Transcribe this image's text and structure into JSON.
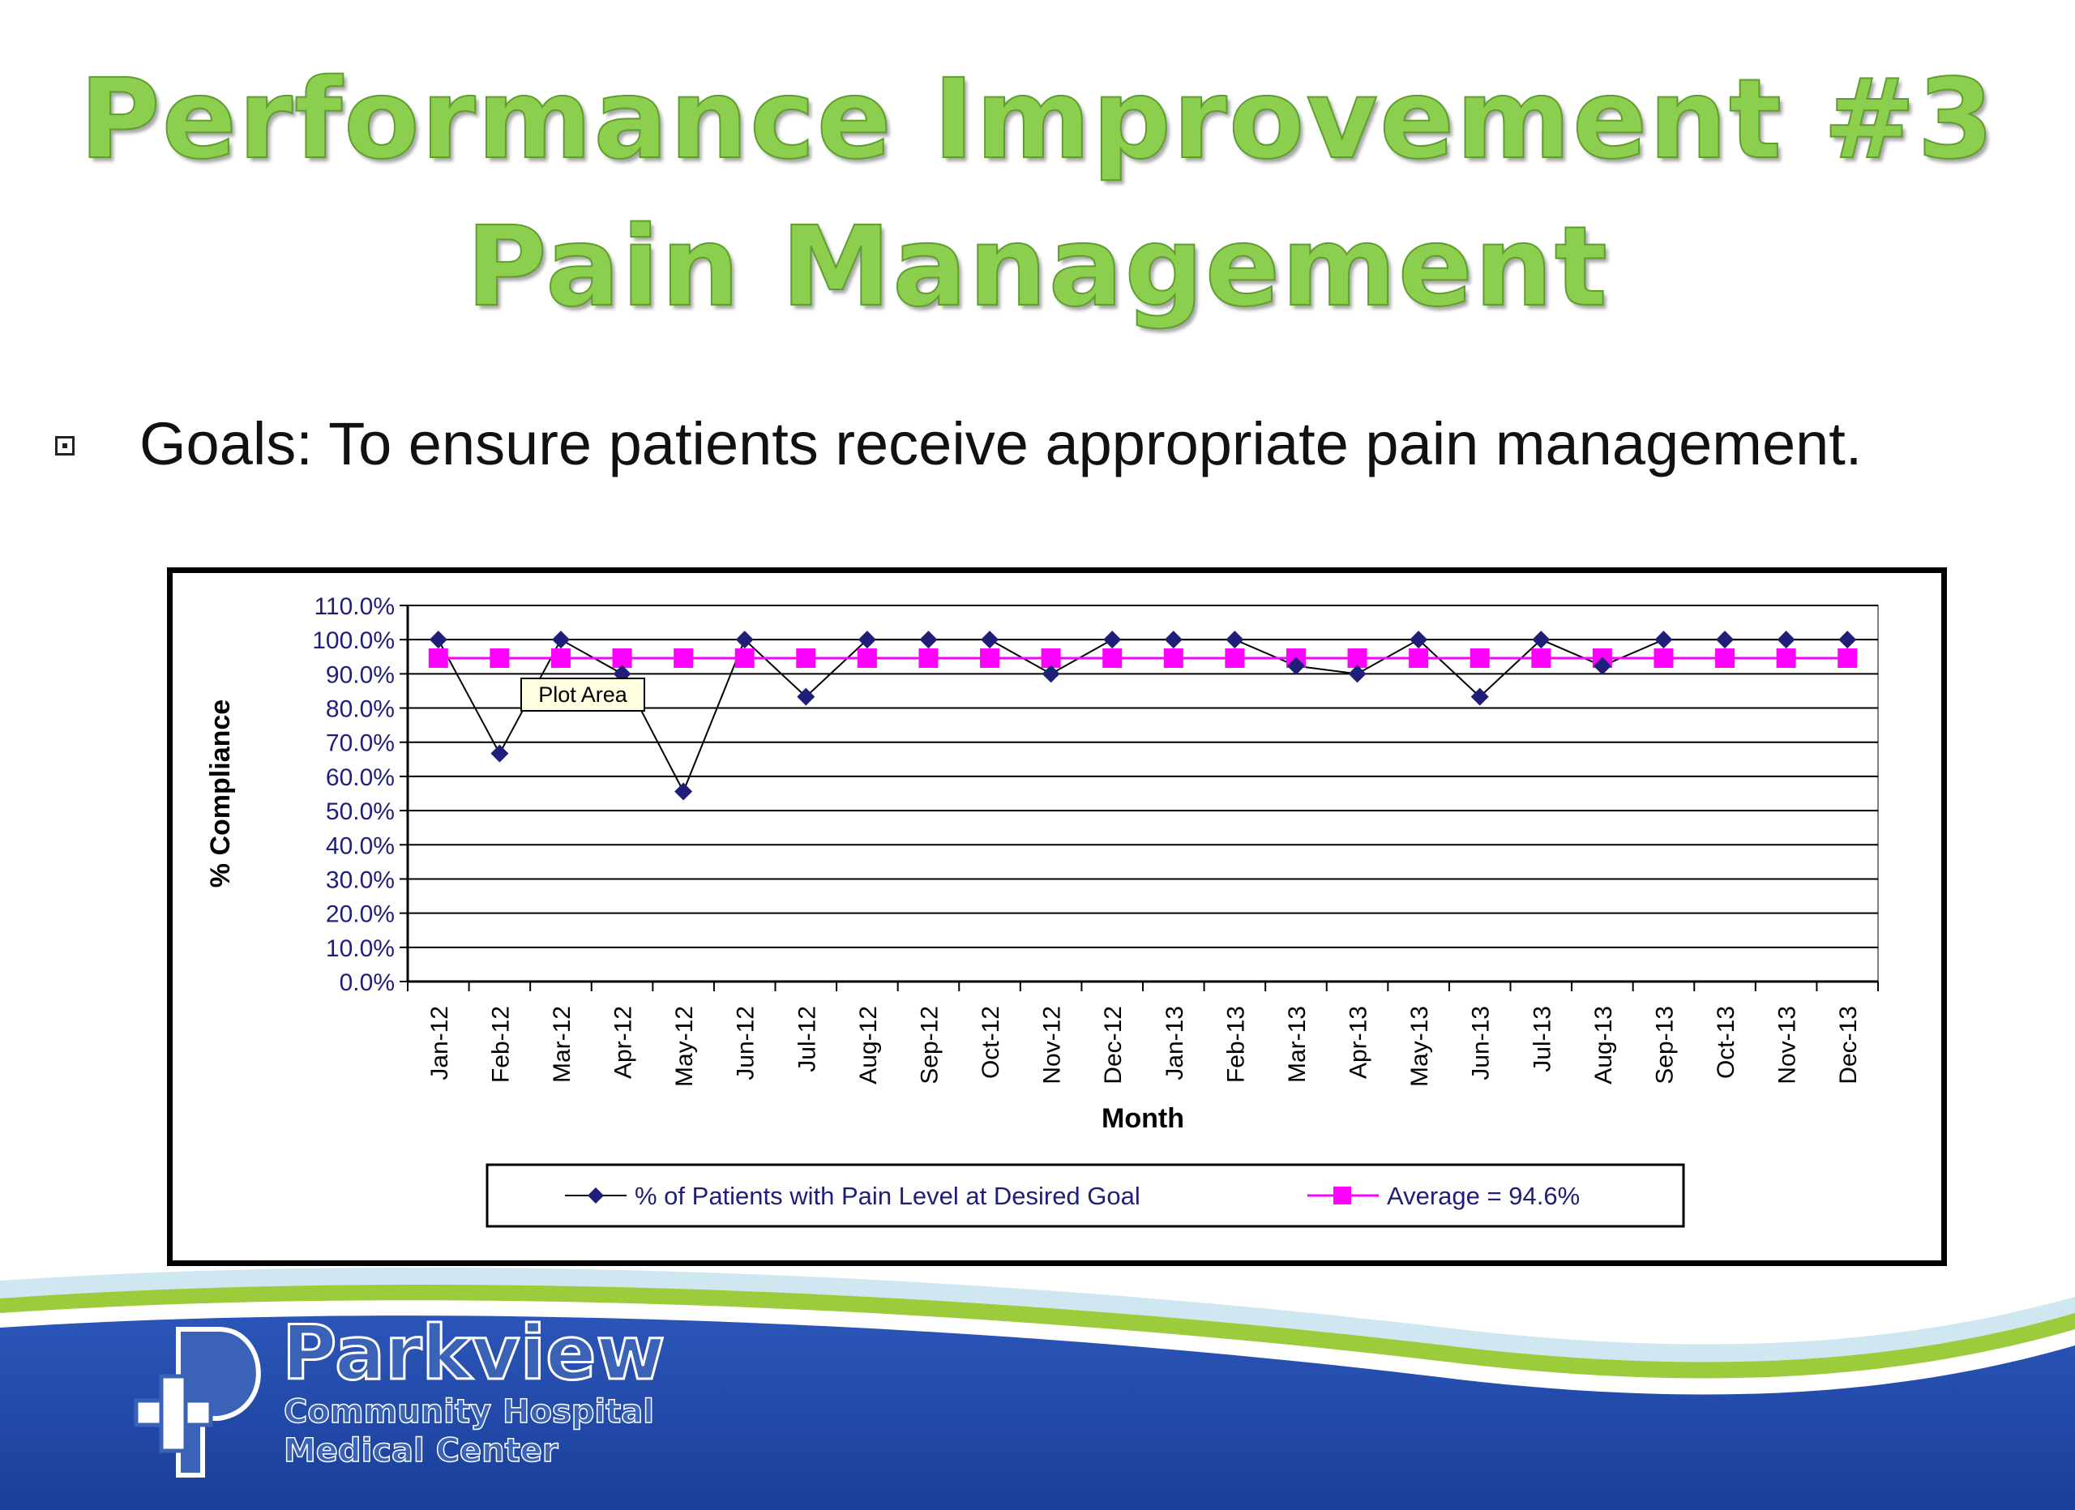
{
  "slide": {
    "title_line1": "Performance Improvement #3",
    "title_line2": "Pain Management",
    "bullet_text": "Goals: To ensure patients receive appropriate pain management."
  },
  "logo": {
    "name": "Parkview",
    "line1": "Community Hospital",
    "line2": "Medical Center"
  },
  "colors": {
    "title": "#8ccf4e",
    "series_patients": "#1f1f7a",
    "series_average": "#ff00ff",
    "footer_blue": "#1f46a8",
    "footer_green": "#9ccc3c"
  },
  "chart_data": {
    "type": "line",
    "xlabel": "Month",
    "ylabel": "% Compliance",
    "ylim": [
      0,
      110
    ],
    "yticks": [
      "0.0%",
      "10.0%",
      "20.0%",
      "30.0%",
      "40.0%",
      "50.0%",
      "60.0%",
      "70.0%",
      "80.0%",
      "90.0%",
      "100.0%",
      "110.0%"
    ],
    "categories": [
      "Jan-12",
      "Feb-12",
      "Mar-12",
      "Apr-12",
      "May-12",
      "Jun-12",
      "Jul-12",
      "Aug-12",
      "Sep-12",
      "Oct-12",
      "Nov-12",
      "Dec-12",
      "Jan-13",
      "Feb-13",
      "Mar-13",
      "Apr-13",
      "May-13",
      "Jun-13",
      "Jul-13",
      "Aug-13",
      "Sep-13",
      "Oct-13",
      "Nov-13",
      "Dec-13"
    ],
    "series": [
      {
        "name": "% of Patients with Pain Level at Desired Goal",
        "marker": "diamond",
        "values": [
          100,
          66.7,
          100,
          90,
          55.6,
          100,
          83.3,
          100,
          100,
          100,
          90,
          100,
          100,
          100,
          92.3,
          90,
          100,
          83.3,
          100,
          92.3,
          100,
          100,
          100,
          100
        ]
      },
      {
        "name": "Average =  94.6%",
        "marker": "square",
        "values": [
          94.6,
          94.6,
          94.6,
          94.6,
          94.6,
          94.6,
          94.6,
          94.6,
          94.6,
          94.6,
          94.6,
          94.6,
          94.6,
          94.6,
          94.6,
          94.6,
          94.6,
          94.6,
          94.6,
          94.6,
          94.6,
          94.6,
          94.6,
          94.6
        ]
      }
    ],
    "grid": true,
    "legend_position": "bottom",
    "tooltip": "Plot Area"
  }
}
